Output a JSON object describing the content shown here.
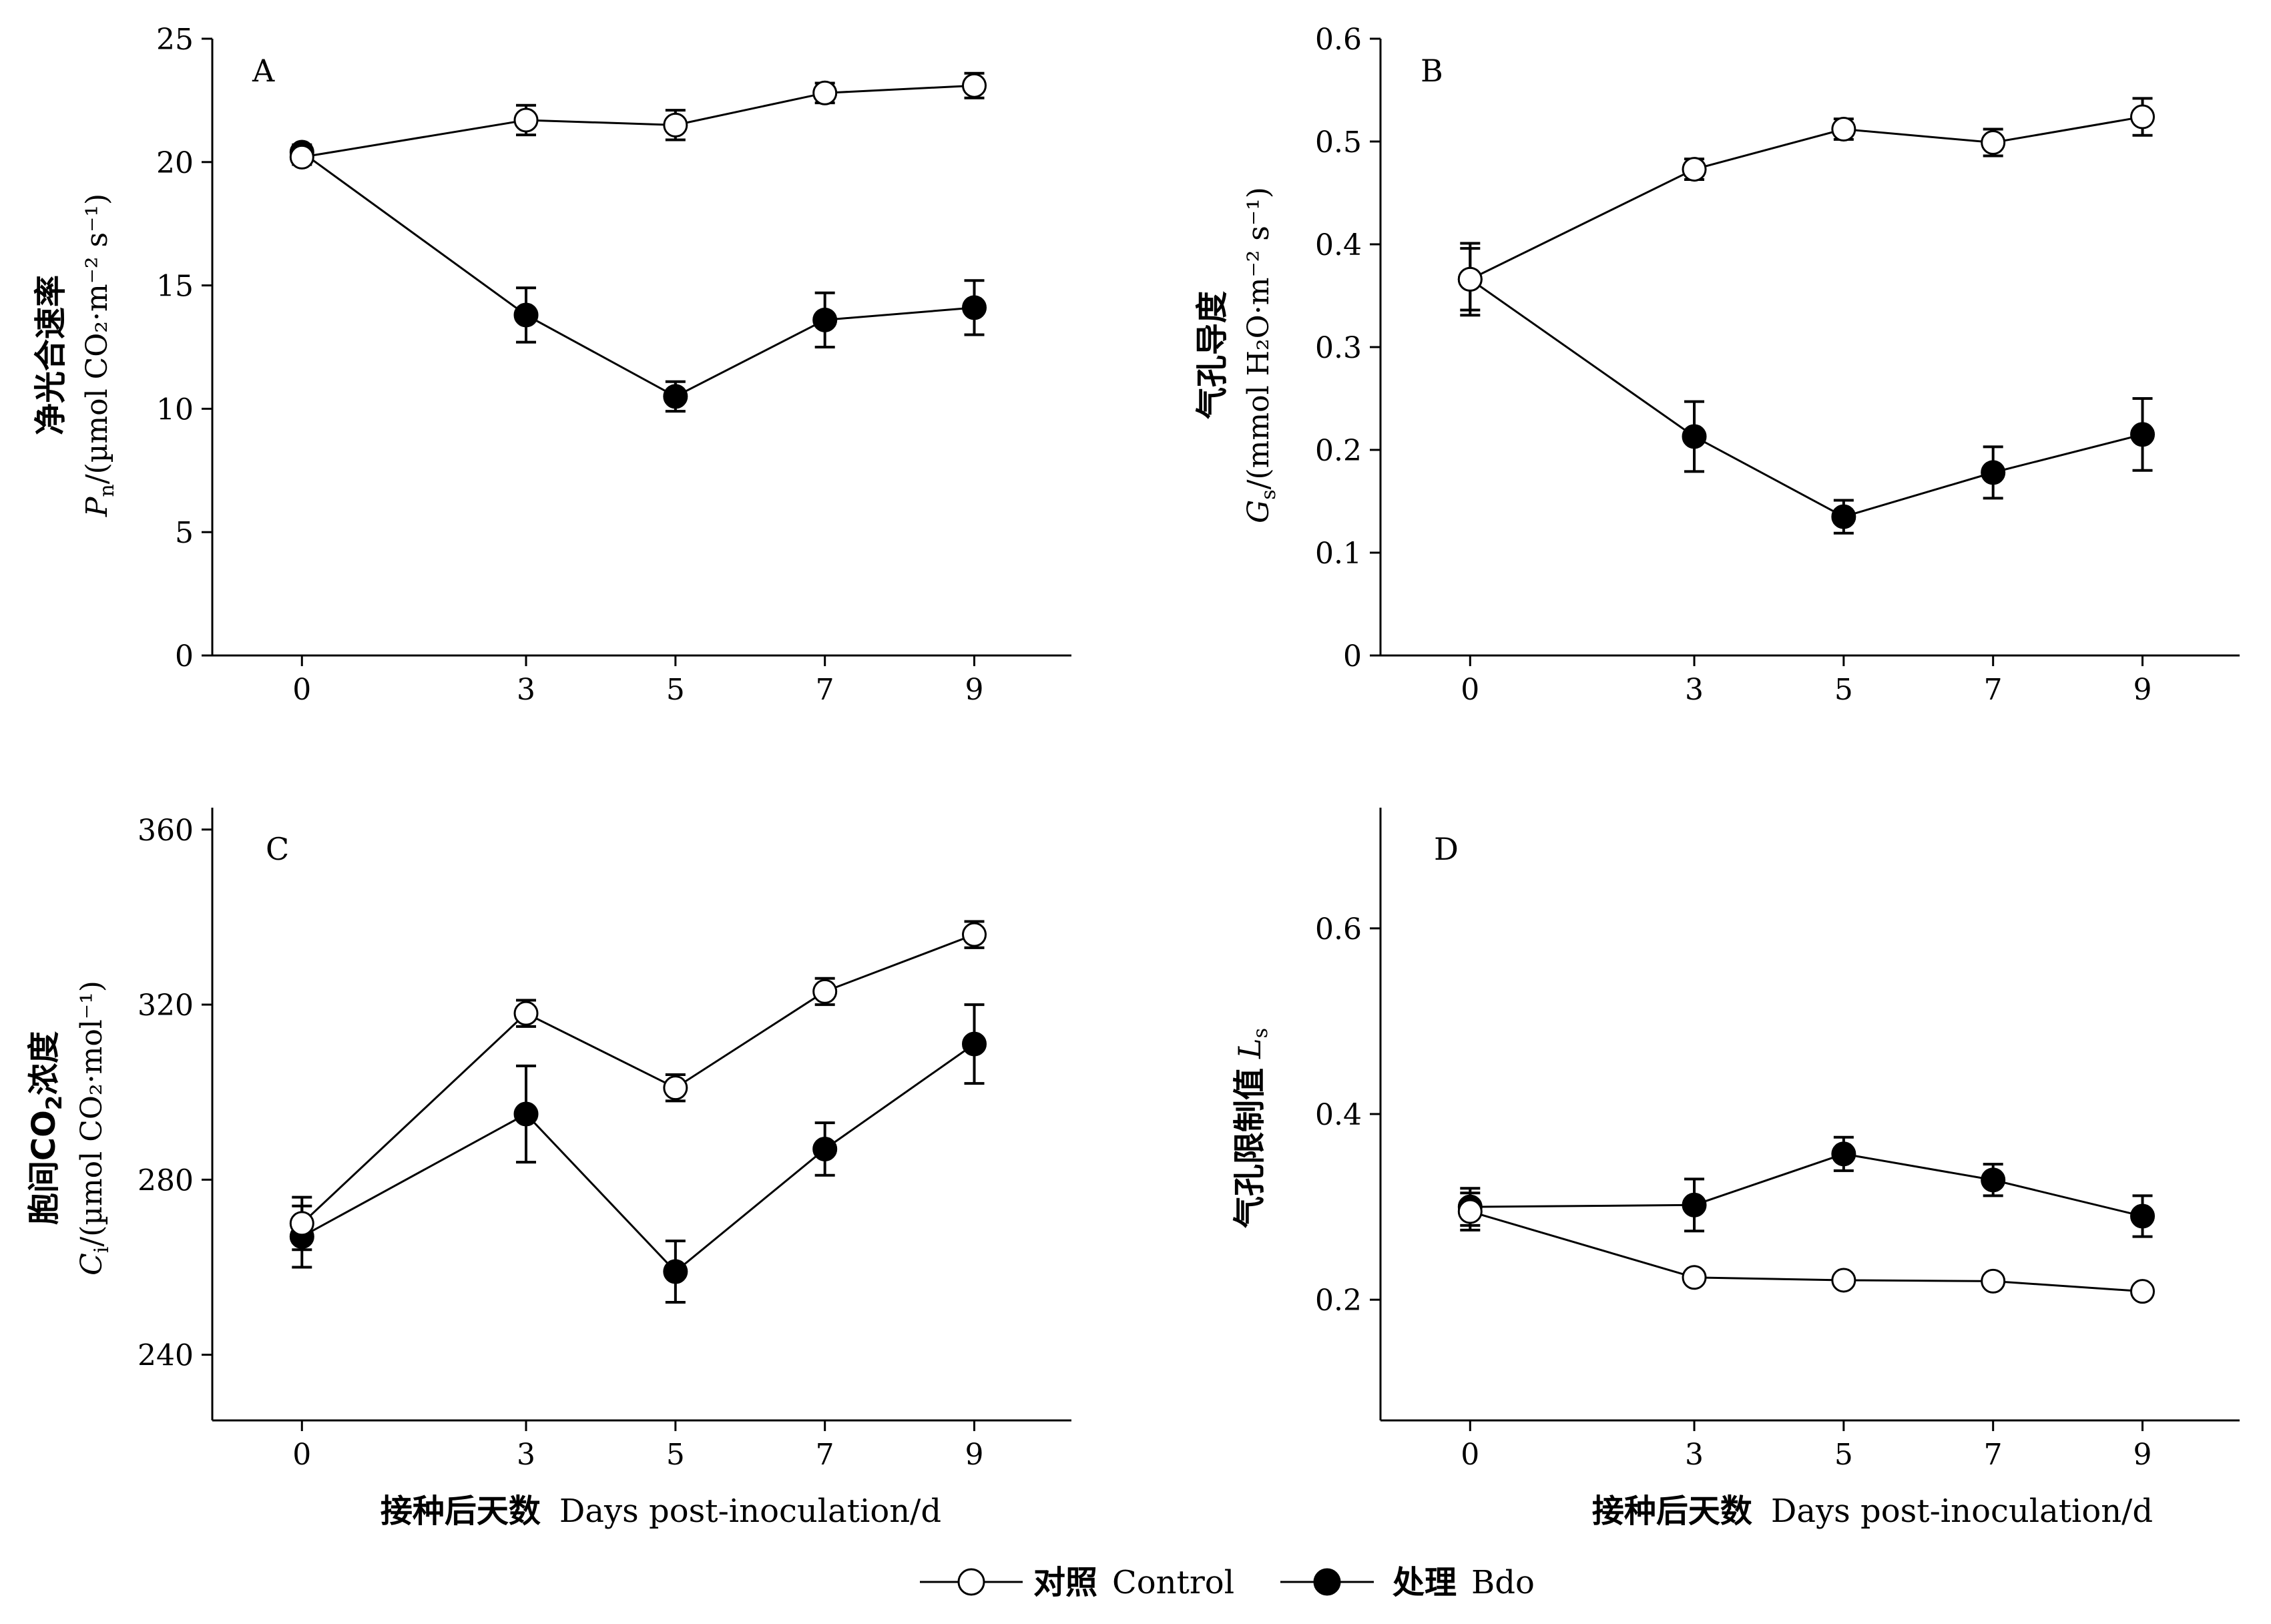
{
  "figure": {
    "legend": {
      "control_cn": "对照",
      "control_en": "Control",
      "treated_cn": "处理",
      "treated_en": "Bdo"
    },
    "xlabel_cn": "接种后天数",
    "xlabel_en": "Days post-inoculation/d"
  },
  "chart_data": [
    {
      "panel": "A",
      "type": "line",
      "ylabel_cn": "净光合速率",
      "ylabel_en_sym": "P",
      "ylabel_en_sub": "n",
      "ylabel_en_unit": "/(µmol CO₂·m⁻² s⁻¹)",
      "ylim": [
        0,
        25
      ],
      "yticks": [
        0,
        5,
        10,
        15,
        20,
        25
      ],
      "x": [
        0,
        3,
        5,
        7,
        9
      ],
      "xticks": [
        "0",
        "3",
        "5",
        "7",
        "9"
      ],
      "series": [
        {
          "key": "control",
          "values": [
            20.2,
            21.7,
            21.5,
            22.8,
            23.1
          ],
          "errors": [
            0.3,
            0.6,
            0.6,
            0.4,
            0.5
          ]
        },
        {
          "key": "treated",
          "values": [
            20.4,
            13.8,
            10.5,
            13.6,
            14.1
          ],
          "errors": [
            0.3,
            1.1,
            0.6,
            1.1,
            1.1
          ]
        }
      ]
    },
    {
      "panel": "B",
      "type": "line",
      "ylabel_cn": "气孔导度",
      "ylabel_en_sym": "G",
      "ylabel_en_sub": "s",
      "ylabel_en_unit": "/(mmol H₂O·m⁻² s⁻¹)",
      "ylim": [
        0,
        0.6
      ],
      "yticks": [
        0,
        0.1,
        0.2,
        0.3,
        0.4,
        0.5,
        0.6
      ],
      "x": [
        0,
        3,
        5,
        7,
        9
      ],
      "xticks": [
        "0",
        "3",
        "5",
        "7",
        "9"
      ],
      "series": [
        {
          "key": "control",
          "values": [
            0.366,
            0.473,
            0.512,
            0.499,
            0.524
          ],
          "errors": [
            0.03,
            0.01,
            0.01,
            0.013,
            0.018
          ]
        },
        {
          "key": "treated",
          "values": [
            0.366,
            0.213,
            0.135,
            0.178,
            0.215
          ],
          "errors": [
            0.035,
            0.034,
            0.016,
            0.025,
            0.035
          ]
        }
      ]
    },
    {
      "panel": "C",
      "type": "line",
      "ylabel_cn_pre": "胞间CO",
      "ylabel_cn_sub": "2",
      "ylabel_cn_post": "浓度",
      "ylabel_en_sym": "C",
      "ylabel_en_sub": "i",
      "ylabel_en_unit": "/(µmol CO₂·mol⁻¹)",
      "ylim": [
        225,
        365
      ],
      "yticks": [
        240,
        280,
        320,
        360
      ],
      "x": [
        0,
        3,
        5,
        7,
        9
      ],
      "xticks": [
        "0",
        "3",
        "5",
        "7",
        "9"
      ],
      "series": [
        {
          "key": "control",
          "values": [
            270,
            318,
            301,
            323,
            336
          ],
          "errors": [
            6,
            3,
            3,
            3,
            3
          ]
        },
        {
          "key": "treated",
          "values": [
            267,
            295,
            259,
            287,
            311
          ],
          "errors": [
            7,
            11,
            7,
            6,
            9
          ]
        }
      ]
    },
    {
      "panel": "D",
      "type": "line",
      "ylabel_cn": "气孔限制值",
      "ylabel_en_sym": "L",
      "ylabel_en_sub": "s",
      "ylim": [
        0.07,
        0.73
      ],
      "yticks": [
        0.2,
        0.4,
        0.6
      ],
      "x": [
        0,
        3,
        5,
        7,
        9
      ],
      "xticks": [
        "0",
        "3",
        "5",
        "7",
        "9"
      ],
      "series": [
        {
          "key": "control",
          "values": [
            0.295,
            0.224,
            0.221,
            0.22,
            0.209
          ],
          "errors": [
            0.02,
            0.005,
            0.005,
            0.005,
            0.005
          ]
        },
        {
          "key": "treated",
          "values": [
            0.3,
            0.302,
            0.357,
            0.329,
            0.29
          ],
          "errors": [
            0.02,
            0.028,
            0.018,
            0.017,
            0.022
          ]
        }
      ]
    }
  ]
}
